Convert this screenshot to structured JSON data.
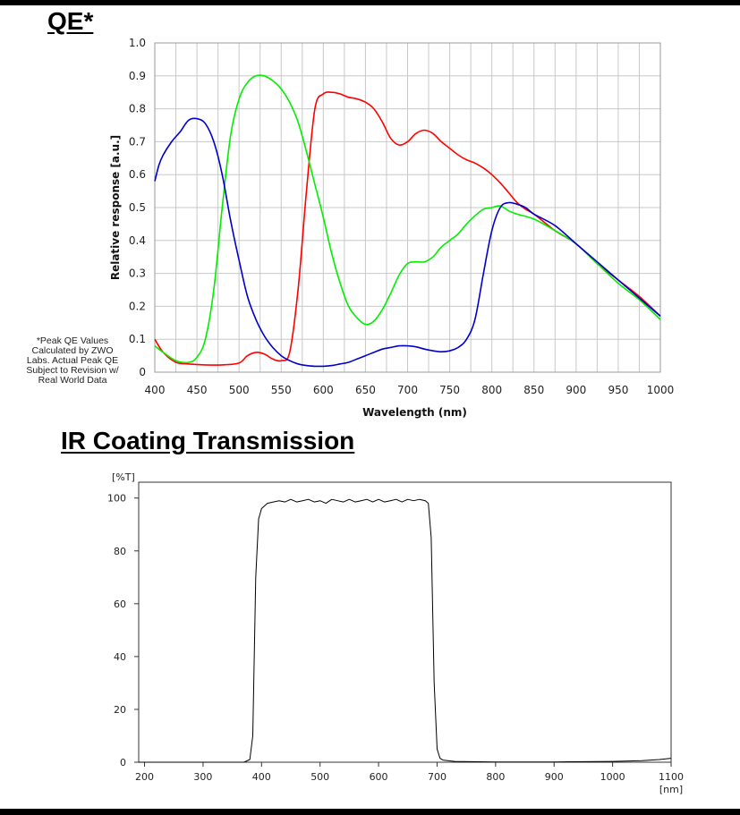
{
  "qe": {
    "title": "QE*",
    "note": "*Peak QE Values Calculated by ZWO Labs. Actual Peak QE Subject to Revision w/ Real World Data"
  },
  "ir": {
    "title": "IR Coating Transmission"
  },
  "chart_data": [
    {
      "type": "line",
      "title": "QE*",
      "xlabel": "Wavelength (nm)",
      "ylabel": "Relative response [a.u.]",
      "xlim": [
        400,
        1000
      ],
      "ylim": [
        0,
        1.0
      ],
      "xticks": [
        400,
        450,
        500,
        550,
        600,
        650,
        700,
        750,
        800,
        850,
        900,
        950,
        1000
      ],
      "yticks": [
        0,
        0.1,
        0.2,
        0.3,
        0.4,
        0.5,
        0.6,
        0.7,
        0.8,
        0.9,
        1.0
      ],
      "ytick_labels": [
        "0",
        "0.1",
        "0.2",
        "0.3",
        "0.4",
        "0.5",
        "0.6",
        "0.7",
        "0.8",
        "0.9",
        "1.0"
      ],
      "grid": true,
      "series": [
        {
          "color": "#ff0000",
          "x": [
            400,
            410,
            425,
            440,
            460,
            480,
            500,
            510,
            520,
            530,
            540,
            550,
            560,
            570,
            580,
            590,
            600,
            610,
            620,
            630,
            640,
            650,
            660,
            670,
            680,
            690,
            700,
            710,
            720,
            730,
            740,
            750,
            760,
            770,
            780,
            790,
            800,
            810,
            820,
            830,
            840,
            850,
            875,
            900,
            925,
            950,
            975,
            1000
          ],
          "y": [
            0.1,
            0.06,
            0.03,
            0.025,
            0.022,
            0.022,
            0.028,
            0.05,
            0.06,
            0.055,
            0.04,
            0.035,
            0.06,
            0.25,
            0.55,
            0.8,
            0.845,
            0.85,
            0.845,
            0.835,
            0.83,
            0.82,
            0.8,
            0.76,
            0.71,
            0.69,
            0.7,
            0.725,
            0.735,
            0.725,
            0.7,
            0.68,
            0.66,
            0.645,
            0.635,
            0.62,
            0.6,
            0.575,
            0.545,
            0.515,
            0.495,
            0.48,
            0.43,
            0.39,
            0.33,
            0.28,
            0.23,
            0.17
          ]
        },
        {
          "color": "#00ee00",
          "x": [
            400,
            410,
            425,
            440,
            450,
            460,
            470,
            480,
            490,
            500,
            510,
            520,
            530,
            540,
            550,
            560,
            570,
            580,
            590,
            600,
            610,
            620,
            630,
            640,
            650,
            660,
            670,
            680,
            690,
            700,
            710,
            720,
            730,
            740,
            750,
            760,
            770,
            780,
            790,
            800,
            810,
            820,
            830,
            850,
            875,
            900,
            925,
            950,
            975,
            1000
          ],
          "y": [
            0.08,
            0.06,
            0.035,
            0.03,
            0.045,
            0.1,
            0.25,
            0.5,
            0.72,
            0.83,
            0.88,
            0.9,
            0.9,
            0.885,
            0.86,
            0.82,
            0.76,
            0.67,
            0.57,
            0.47,
            0.36,
            0.27,
            0.2,
            0.165,
            0.145,
            0.155,
            0.19,
            0.24,
            0.295,
            0.33,
            0.335,
            0.335,
            0.35,
            0.38,
            0.4,
            0.42,
            0.45,
            0.475,
            0.495,
            0.5,
            0.505,
            0.49,
            0.48,
            0.465,
            0.43,
            0.39,
            0.33,
            0.27,
            0.22,
            0.16
          ]
        },
        {
          "color": "#0000cc",
          "x": [
            400,
            405,
            410,
            420,
            430,
            440,
            450,
            460,
            470,
            480,
            490,
            500,
            510,
            520,
            530,
            540,
            550,
            560,
            570,
            580,
            590,
            600,
            610,
            620,
            630,
            640,
            650,
            660,
            670,
            680,
            690,
            700,
            710,
            720,
            730,
            740,
            750,
            760,
            770,
            780,
            790,
            800,
            810,
            820,
            830,
            840,
            850,
            875,
            900,
            925,
            950,
            975,
            1000
          ],
          "y": [
            0.58,
            0.63,
            0.66,
            0.7,
            0.73,
            0.765,
            0.77,
            0.755,
            0.7,
            0.6,
            0.46,
            0.34,
            0.23,
            0.16,
            0.11,
            0.075,
            0.05,
            0.035,
            0.025,
            0.02,
            0.018,
            0.018,
            0.02,
            0.025,
            0.03,
            0.04,
            0.05,
            0.06,
            0.07,
            0.075,
            0.08,
            0.08,
            0.077,
            0.07,
            0.065,
            0.062,
            0.065,
            0.075,
            0.1,
            0.16,
            0.3,
            0.43,
            0.5,
            0.515,
            0.51,
            0.5,
            0.48,
            0.445,
            0.39,
            0.335,
            0.28,
            0.225,
            0.17
          ]
        }
      ]
    },
    {
      "type": "line",
      "title": "IR Coating Transmission",
      "ylabel": "[%T]",
      "xlabel": "[nm]",
      "xlim": [
        190,
        1100
      ],
      "ylim": [
        0,
        106
      ],
      "xticks": [
        200,
        300,
        400,
        500,
        600,
        700,
        800,
        900,
        1000,
        1100
      ],
      "yticks": [
        0,
        20,
        40,
        60,
        80,
        100
      ],
      "grid": false,
      "series": [
        {
          "color": "#000000",
          "x": [
            190,
            370,
            380,
            385,
            390,
            395,
            400,
            410,
            420,
            430,
            440,
            450,
            460,
            470,
            480,
            490,
            500,
            510,
            520,
            530,
            540,
            550,
            560,
            570,
            580,
            590,
            600,
            610,
            620,
            630,
            640,
            650,
            660,
            670,
            680,
            685,
            690,
            695,
            700,
            705,
            710,
            730,
            800,
            900,
            1000,
            1050,
            1080,
            1100
          ],
          "y": [
            0,
            0,
            1,
            10,
            70,
            92,
            96,
            98,
            98.5,
            99,
            98.5,
            99.5,
            98.5,
            99,
            99.5,
            98.5,
            99,
            98,
            99.5,
            99,
            98.5,
            99.5,
            98.5,
            99,
            99.5,
            98.5,
            99.5,
            98.5,
            99,
            99.5,
            98.5,
            99.5,
            99,
            99.5,
            99,
            98,
            85,
            30,
            5,
            1.5,
            0.8,
            0.3,
            0.1,
            0.1,
            0.3,
            0.6,
            1.0,
            1.5
          ]
        }
      ]
    }
  ]
}
